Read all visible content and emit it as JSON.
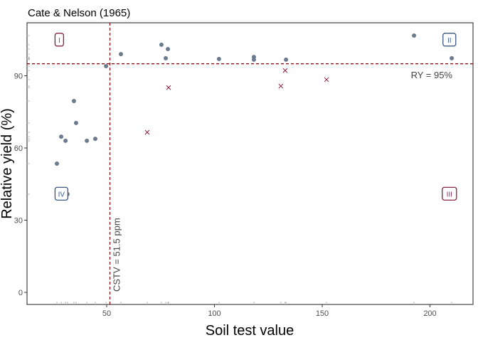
{
  "chart_data": {
    "type": "scatter",
    "title": "Cate & Nelson (1965)",
    "xlabel": "Soil test value",
    "ylabel": "Relative yield (%)",
    "xlim": [
      17,
      222
    ],
    "ylim": [
      -5,
      112
    ],
    "xticks": [
      50,
      100,
      150,
      200
    ],
    "yticks": [
      0,
      30,
      60,
      90
    ],
    "grid": false,
    "colors": {
      "point": "#6b7b8f",
      "cross": "#8b1a3a",
      "line": "#8b0000",
      "blue_box": "#2a4a7a",
      "red_box": "#7a1030"
    },
    "points": [
      {
        "x": 26.9,
        "y": 53.5
      },
      {
        "x": 28.9,
        "y": 64.7
      },
      {
        "x": 30.9,
        "y": 63.0
      },
      {
        "x": 31.8,
        "y": 40.8
      },
      {
        "x": 34.8,
        "y": 79.5
      },
      {
        "x": 35.8,
        "y": 70.4
      },
      {
        "x": 40.8,
        "y": 63.0
      },
      {
        "x": 44.7,
        "y": 63.8
      },
      {
        "x": 49.7,
        "y": 94.0
      },
      {
        "x": 56.6,
        "y": 99.0
      },
      {
        "x": 75.4,
        "y": 102.9
      },
      {
        "x": 77.4,
        "y": 97.3
      },
      {
        "x": 78.4,
        "y": 101.1
      },
      {
        "x": 102.1,
        "y": 97.0
      },
      {
        "x": 118.3,
        "y": 97.8
      },
      {
        "x": 118.3,
        "y": 96.7
      },
      {
        "x": 133.2,
        "y": 96.7
      },
      {
        "x": 192.6,
        "y": 106.7
      },
      {
        "x": 210.1,
        "y": 97.3
      }
    ],
    "crosses": [
      {
        "x": 68.8,
        "y": 66.5
      },
      {
        "x": 78.7,
        "y": 85.1
      },
      {
        "x": 130.8,
        "y": 85.7
      },
      {
        "x": 132.8,
        "y": 92.2
      },
      {
        "x": 152.0,
        "y": 88.4
      }
    ],
    "cstv": 51.5,
    "cstv_label": "CSTV = 51.5 ppm",
    "ry": 95,
    "ry_label": "RY = 95%",
    "quadrants": [
      {
        "label": "I",
        "x": 28,
        "y": 105,
        "style": "red"
      },
      {
        "label": "II",
        "x": 209,
        "y": 105,
        "style": "blue"
      },
      {
        "label": "III",
        "x": 209,
        "y": 41,
        "style": "red"
      },
      {
        "label": "IV",
        "x": 29,
        "y": 41,
        "style": "blue"
      }
    ]
  }
}
